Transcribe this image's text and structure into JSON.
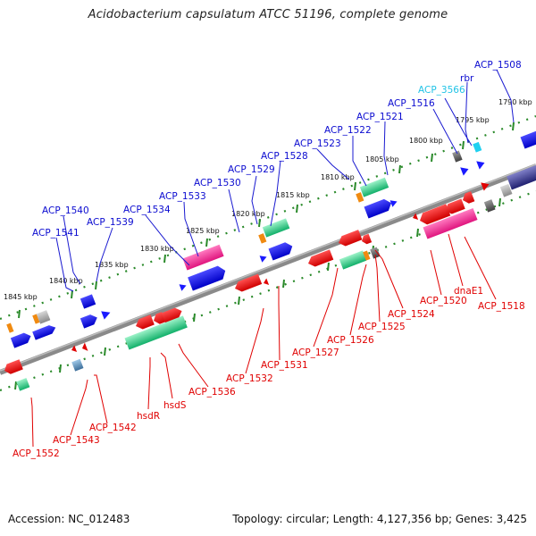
{
  "title": "Acidobacterium capsulatum ATCC 51196, complete genome",
  "footer": {
    "accession": "Accession: NC_012483",
    "summary": "Topology: circular; Length: 4,127,356 bp; Genes: 3,425"
  },
  "colors": {
    "forward_label": "#0b0bd0",
    "reverse_label": "#e00000",
    "rna_label": "#21c3e6",
    "backbone": "#8a8a8a",
    "dots": "#2a8a2a"
  },
  "ticks": [
    "1790 kbp",
    "1795 kbp",
    "1800 kbp",
    "1805 kbp",
    "1810 kbp",
    "1815 kbp",
    "1820 kbp",
    "1825 kbp",
    "1830 kbp",
    "1835 kbp",
    "1840 kbp",
    "1845 kbp"
  ],
  "forward_genes": [
    "ACP_1508",
    "rbr",
    "ACP_3566",
    "ACP_1516",
    "ACP_1521",
    "ACP_1522",
    "ACP_1523",
    "ACP_1528",
    "ACP_1529",
    "ACP_1530",
    "ACP_1533",
    "ACP_1534",
    "ACP_1539",
    "ACP_1540",
    "ACP_1541"
  ],
  "reverse_genes": [
    "ACP_1518",
    "dnaE1",
    "ACP_1520",
    "ACP_1524",
    "ACP_1525",
    "ACP_1526",
    "ACP_1527",
    "ACP_1531",
    "ACP_1532",
    "ACP_1536",
    "hsdS",
    "hsdR",
    "ACP_1542",
    "ACP_1543",
    "ACP_1552"
  ]
}
